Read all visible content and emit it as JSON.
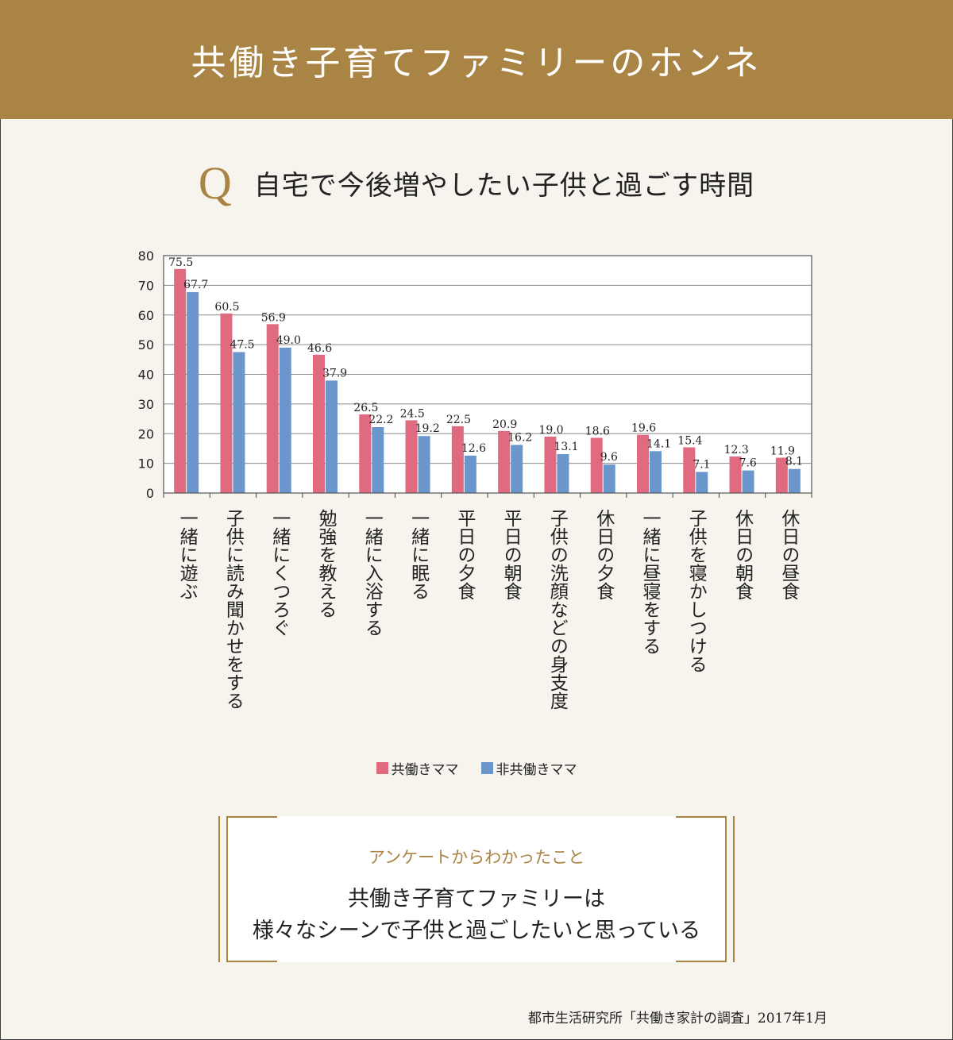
{
  "header": {
    "title": "共働き子育てファミリーのホンネ"
  },
  "question": {
    "mark": "Q",
    "text": "自宅で今後増やしたい子供と過ごす時間"
  },
  "legend": {
    "working_label": "共働きママ",
    "nonworking_label": "非共働きママ"
  },
  "colors": {
    "working": "#e06a80",
    "nonworking": "#6a96cc",
    "accent": "#a98444"
  },
  "chart_data": {
    "type": "bar",
    "categories": [
      "一緒に遊ぶ",
      "子供に読み聞かせをする",
      "一緒にくつろぐ",
      "勉強を教える",
      "一緒に入浴する",
      "一緒に眠る",
      "平日の夕食",
      "平日の朝食",
      "子供の洗顔などの身支度",
      "休日の夕食",
      "一緒に昼寝をする",
      "子供を寝かしつける",
      "休日の朝食",
      "休日の昼食"
    ],
    "series": [
      {
        "name": "共働きママ",
        "values": [
          75.5,
          60.5,
          56.9,
          46.6,
          26.5,
          24.5,
          22.5,
          20.9,
          19.0,
          18.6,
          19.6,
          15.4,
          12.3,
          11.9
        ]
      },
      {
        "name": "非共働きママ",
        "values": [
          67.7,
          47.5,
          49.0,
          37.9,
          22.2,
          19.2,
          12.6,
          16.2,
          13.1,
          9.6,
          14.1,
          7.1,
          7.6,
          8.1
        ]
      }
    ],
    "ylim": [
      0,
      80
    ],
    "yticks": [
      0,
      10,
      20,
      30,
      40,
      50,
      60,
      70,
      80
    ],
    "grid": true,
    "legend_position": "bottom"
  },
  "findings": {
    "label": "アンケートからわかったこと",
    "line1": "共働き子育てファミリーは",
    "line2": "様々なシーンで子供と過ごしたいと思っている"
  },
  "source": "都市生活研究所「共働き家計の調査」2017年1月"
}
